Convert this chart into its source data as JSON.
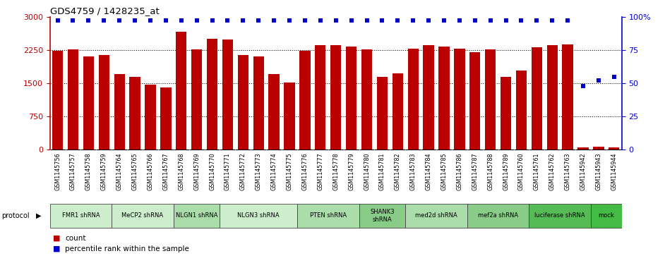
{
  "title": "GDS4759 / 1428235_at",
  "samples": [
    "GSM1145756",
    "GSM1145757",
    "GSM1145758",
    "GSM1145759",
    "GSM1145764",
    "GSM1145765",
    "GSM1145766",
    "GSM1145767",
    "GSM1145768",
    "GSM1145769",
    "GSM1145770",
    "GSM1145771",
    "GSM1145772",
    "GSM1145773",
    "GSM1145774",
    "GSM1145775",
    "GSM1145776",
    "GSM1145777",
    "GSM1145778",
    "GSM1145779",
    "GSM1145780",
    "GSM1145781",
    "GSM1145782",
    "GSM1145783",
    "GSM1145784",
    "GSM1145785",
    "GSM1145786",
    "GSM1145787",
    "GSM1145788",
    "GSM1145789",
    "GSM1145760",
    "GSM1145761",
    "GSM1145762",
    "GSM1145763",
    "GSM1145942",
    "GSM1145943",
    "GSM1145944"
  ],
  "counts": [
    2230,
    2270,
    2100,
    2130,
    1700,
    1640,
    1460,
    1400,
    2660,
    2270,
    2500,
    2490,
    2130,
    2100,
    1700,
    1520,
    2230,
    2350,
    2350,
    2330,
    2260,
    1650,
    1720,
    2280,
    2360,
    2330,
    2280,
    2200,
    2260,
    1640,
    1790,
    2310,
    2360,
    2370,
    55,
    65,
    60
  ],
  "percentiles": [
    97,
    97,
    97,
    97,
    97,
    97,
    97,
    97,
    97,
    97,
    97,
    97,
    97,
    97,
    97,
    97,
    97,
    97,
    97,
    97,
    97,
    97,
    97,
    97,
    97,
    97,
    97,
    97,
    97,
    97,
    97,
    97,
    97,
    97,
    48,
    52,
    55
  ],
  "protocols": [
    {
      "label": "FMR1 shRNA",
      "start": 0,
      "end": 4,
      "color": "#cceecc"
    },
    {
      "label": "MeCP2 shRNA",
      "start": 4,
      "end": 8,
      "color": "#cceecc"
    },
    {
      "label": "NLGN1 shRNA",
      "start": 8,
      "end": 11,
      "color": "#aaddaa"
    },
    {
      "label": "NLGN3 shRNA",
      "start": 11,
      "end": 16,
      "color": "#cceecc"
    },
    {
      "label": "PTEN shRNA",
      "start": 16,
      "end": 20,
      "color": "#aaddaa"
    },
    {
      "label": "SHANK3\nshRNA",
      "start": 20,
      "end": 23,
      "color": "#88cc88"
    },
    {
      "label": "med2d shRNA",
      "start": 23,
      "end": 27,
      "color": "#aaddaa"
    },
    {
      "label": "mef2a shRNA",
      "start": 27,
      "end": 31,
      "color": "#88cc88"
    },
    {
      "label": "luciferase shRNA",
      "start": 31,
      "end": 35,
      "color": "#55bb55"
    },
    {
      "label": "mock",
      "start": 35,
      "end": 37,
      "color": "#44bb44"
    }
  ],
  "ylim_left": [
    0,
    3000
  ],
  "ylim_right": [
    0,
    100
  ],
  "yticks_left": [
    0,
    750,
    1500,
    2250,
    3000
  ],
  "yticks_right": [
    0,
    25,
    50,
    75,
    100
  ],
  "bar_color": "#bb0000",
  "dot_color": "#0000cc",
  "sample_bg_color": "#cccccc",
  "fig_bg": "#ffffff"
}
